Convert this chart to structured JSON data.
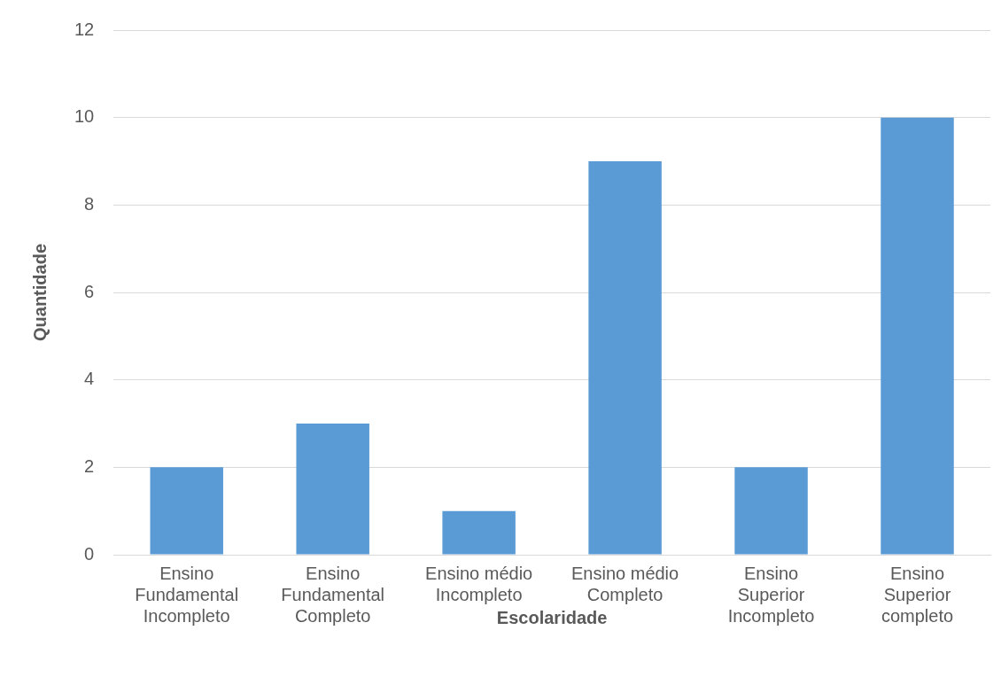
{
  "chart_data": {
    "type": "bar",
    "xlabel": "Escolaridade",
    "ylabel": "Quantidade",
    "categories": [
      "Ensino Fundamental Incompleto",
      "Ensino Fundamental Completo",
      "Ensino médio Incompleto",
      "Ensino médio Completo",
      "Ensino Superior Incompleto",
      "Ensino Superior completo"
    ],
    "values": [
      2,
      3,
      1,
      9,
      2,
      10
    ],
    "color": "#5b9bd5",
    "ylim": [
      0,
      12
    ],
    "yticks": [
      0,
      2,
      4,
      6,
      8,
      10,
      12
    ],
    "grid": "y",
    "legend": false
  }
}
